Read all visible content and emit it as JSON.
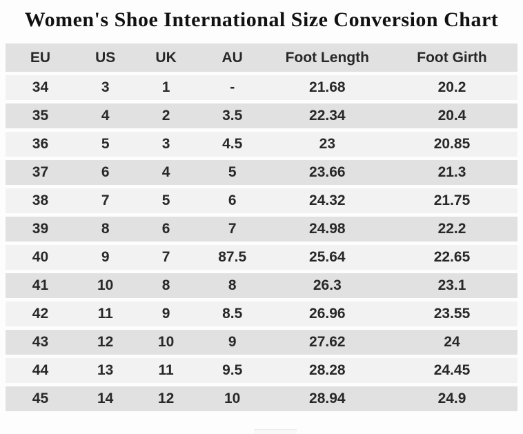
{
  "title": "Women's Shoe International Size Conversion Chart",
  "chart_data": {
    "type": "table",
    "title": "Women's Shoe International Size Conversion Chart",
    "columns": [
      "EU",
      "US",
      "UK",
      "AU",
      "Foot Length",
      "Foot Girth"
    ],
    "rows": [
      [
        "34",
        "3",
        "1",
        "-",
        "21.68",
        "20.2"
      ],
      [
        "35",
        "4",
        "2",
        "3.5",
        "22.34",
        "20.4"
      ],
      [
        "36",
        "5",
        "3",
        "4.5",
        "23",
        "20.85"
      ],
      [
        "37",
        "6",
        "4",
        "5",
        "23.66",
        "21.3"
      ],
      [
        "38",
        "7",
        "5",
        "6",
        "24.32",
        "21.75"
      ],
      [
        "39",
        "8",
        "6",
        "7",
        "24.98",
        "22.2"
      ],
      [
        "40",
        "9",
        "7",
        "87.5",
        "25.64",
        "22.65"
      ],
      [
        "41",
        "10",
        "8",
        "8",
        "26.3",
        "23.1"
      ],
      [
        "42",
        "11",
        "9",
        "8.5",
        "26.96",
        "23.55"
      ],
      [
        "43",
        "12",
        "10",
        "9",
        "27.62",
        "24"
      ],
      [
        "44",
        "13",
        "11",
        "9.5",
        "28.28",
        "24.45"
      ],
      [
        "45",
        "14",
        "12",
        "10",
        "28.94",
        "24.9"
      ]
    ]
  },
  "colors": {
    "row_light": "#f2f2f2",
    "row_dark": "#e1e1e1",
    "header_bg": "#e1e1e1",
    "text": "#282828",
    "title_text": "#111111",
    "background": "#fdfdfd"
  }
}
